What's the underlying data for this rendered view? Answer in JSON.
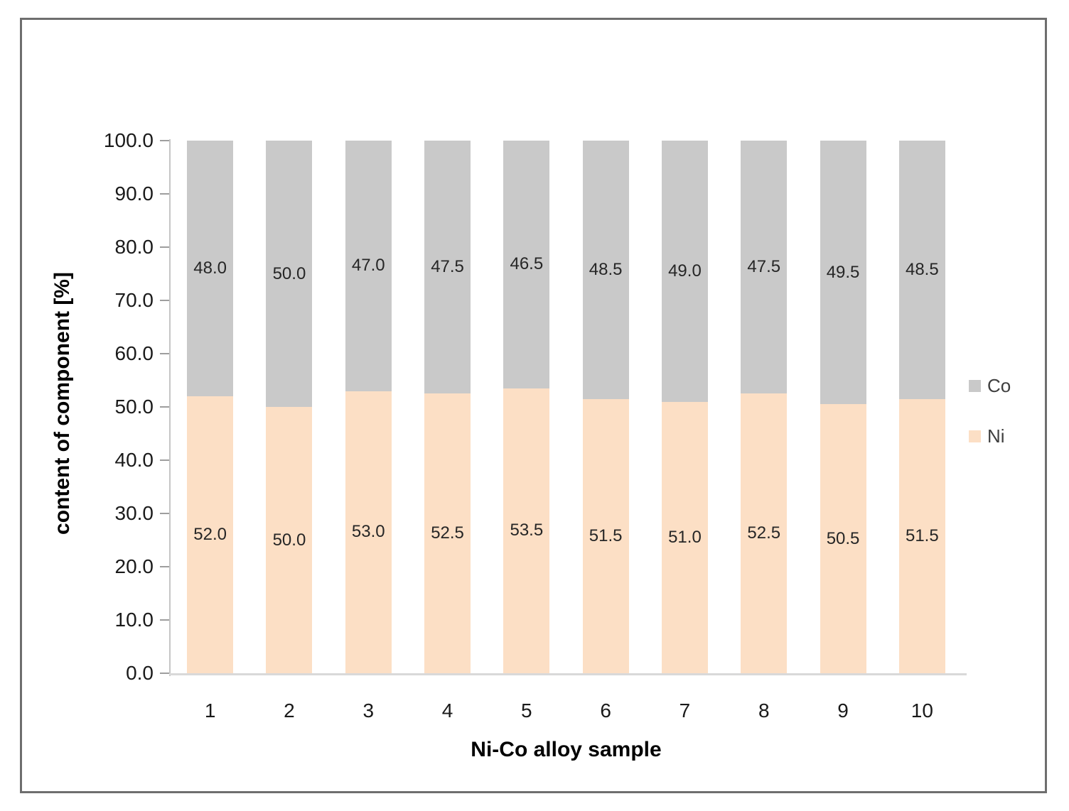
{
  "chart_data": {
    "type": "bar",
    "stacked": true,
    "title": "",
    "xlabel": "Ni-Co alloy sample",
    "ylabel": "content of component [%]",
    "categories": [
      "1",
      "2",
      "3",
      "4",
      "5",
      "6",
      "7",
      "8",
      "9",
      "10"
    ],
    "series": [
      {
        "name": "Ni",
        "color": "#fcdfc5",
        "values": [
          52.0,
          50.0,
          53.0,
          52.5,
          53.5,
          51.5,
          51.0,
          52.5,
          50.5,
          51.5
        ]
      },
      {
        "name": "Co",
        "color": "#c9c9c9",
        "values": [
          48.0,
          50.0,
          47.0,
          47.5,
          46.5,
          48.5,
          49.0,
          47.5,
          49.5,
          48.5
        ]
      }
    ],
    "ylim": [
      0,
      100
    ],
    "ytick_step": 10,
    "ytick_labels": [
      "0.0",
      "10.0",
      "20.0",
      "30.0",
      "40.0",
      "50.0",
      "60.0",
      "70.0",
      "80.0",
      "90.0",
      "100.0"
    ],
    "value_labels_shown": true,
    "value_label_decimals": 1,
    "grid": false,
    "legend_position": "right",
    "legend_entries": [
      "Co",
      "Ni"
    ]
  }
}
